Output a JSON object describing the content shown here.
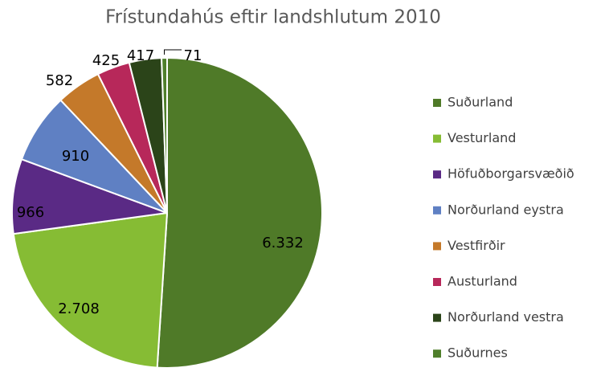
{
  "chart_data": {
    "type": "pie",
    "title": "Frístundahús eftir landshlutum 2010",
    "categories": [
      "Suðurland",
      "Vesturland",
      "Höfuðborgarsvæðið",
      "Norðurland eystra",
      "Vestfirðir",
      "Austurland",
      "Norðurland vestra",
      "Suðurnes"
    ],
    "values": [
      6332,
      2708,
      966,
      910,
      582,
      425,
      417,
      71
    ],
    "value_labels": [
      "6.332",
      "2.708",
      "966",
      "910",
      "582",
      "425",
      "417",
      "71"
    ],
    "colors": [
      "#4f7a28",
      "#86bc34",
      "#5a2a85",
      "#5f80c3",
      "#c4792a",
      "#b7285a",
      "#2b4419",
      "#4f7f2b"
    ],
    "legend": "right"
  }
}
